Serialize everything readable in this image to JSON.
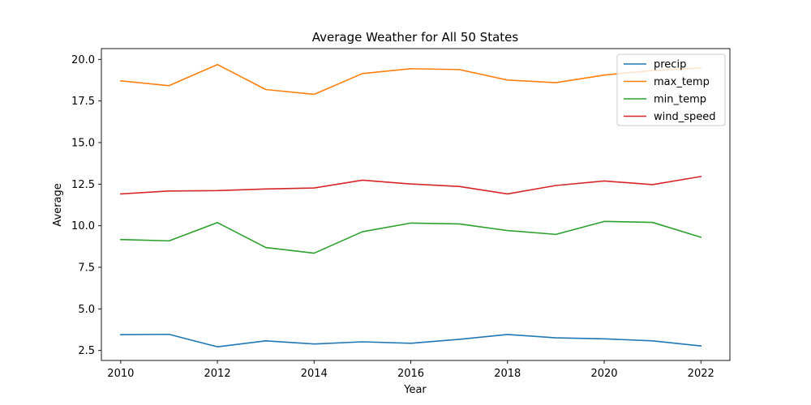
{
  "chart_data": {
    "type": "line",
    "title": "Average Weather for All 50 States",
    "xlabel": "Year",
    "ylabel": "Average",
    "xlim": [
      2009.6,
      2022.6
    ],
    "ylim": [
      1.9,
      20.65
    ],
    "x_ticks": [
      2010,
      2012,
      2014,
      2016,
      2018,
      2020,
      2022
    ],
    "y_ticks": [
      2.5,
      5.0,
      7.5,
      10.0,
      12.5,
      15.0,
      17.5,
      20.0
    ],
    "y_tick_labels": [
      "2.5",
      "5.0",
      "7.5",
      "10.0",
      "12.5",
      "15.0",
      "17.5",
      "20.0"
    ],
    "grid": false,
    "legend_position": "top-right",
    "x": [
      2010,
      2011,
      2012,
      2013,
      2014,
      2015,
      2016,
      2017,
      2018,
      2019,
      2020,
      2021,
      2022
    ],
    "series": [
      {
        "name": "precip",
        "color": "#1f77b4",
        "values": [
          3.45,
          3.47,
          2.72,
          3.08,
          2.89,
          3.02,
          2.93,
          3.17,
          3.46,
          3.26,
          3.2,
          3.08,
          2.77
        ]
      },
      {
        "name": "max_temp",
        "color": "#ff7f0e",
        "values": [
          18.71,
          18.42,
          19.69,
          18.19,
          17.9,
          19.15,
          19.44,
          19.39,
          18.76,
          18.6,
          19.06,
          19.33,
          19.49
        ]
      },
      {
        "name": "min_temp",
        "color": "#2ca02c",
        "values": [
          9.17,
          9.09,
          10.19,
          8.69,
          8.35,
          9.64,
          10.16,
          10.11,
          9.71,
          9.48,
          10.26,
          10.2,
          9.31
        ]
      },
      {
        "name": "wind_speed",
        "color": "#d62728",
        "values": [
          11.91,
          12.09,
          12.11,
          12.21,
          12.27,
          12.74,
          12.51,
          12.36,
          11.91,
          12.42,
          12.69,
          12.47,
          12.96
        ]
      }
    ]
  }
}
